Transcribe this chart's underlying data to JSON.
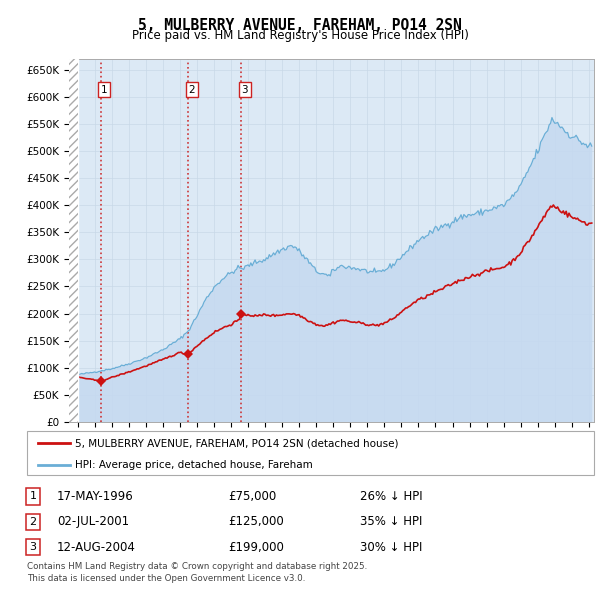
{
  "title": "5, MULBERRY AVENUE, FAREHAM, PO14 2SN",
  "subtitle": "Price paid vs. HM Land Registry's House Price Index (HPI)",
  "legend_line1": "5, MULBERRY AVENUE, FAREHAM, PO14 2SN (detached house)",
  "legend_line2": "HPI: Average price, detached house, Fareham",
  "footer": "Contains HM Land Registry data © Crown copyright and database right 2025.\nThis data is licensed under the Open Government Licence v3.0.",
  "sales": [
    {
      "num": 1,
      "date": "17-MAY-1996",
      "price": 75000,
      "hpi_diff": "26% ↓ HPI",
      "year": 1996.37
    },
    {
      "num": 2,
      "date": "02-JUL-2001",
      "price": 125000,
      "hpi_diff": "35% ↓ HPI",
      "year": 2001.5
    },
    {
      "num": 3,
      "date": "12-AUG-2004",
      "price": 199000,
      "hpi_diff": "30% ↓ HPI",
      "year": 2004.62
    }
  ],
  "ylim": [
    0,
    670000
  ],
  "xlim": [
    1994.5,
    2025.3
  ],
  "hpi_fill_color": "#c5d9f0",
  "hpi_line_color": "#6aaed6",
  "price_line_color": "#cc1111",
  "sale_marker_color": "#cc1111",
  "vline_color": "#cc2222",
  "grid_color": "#c8d8e8",
  "background_color": "#dce9f5"
}
